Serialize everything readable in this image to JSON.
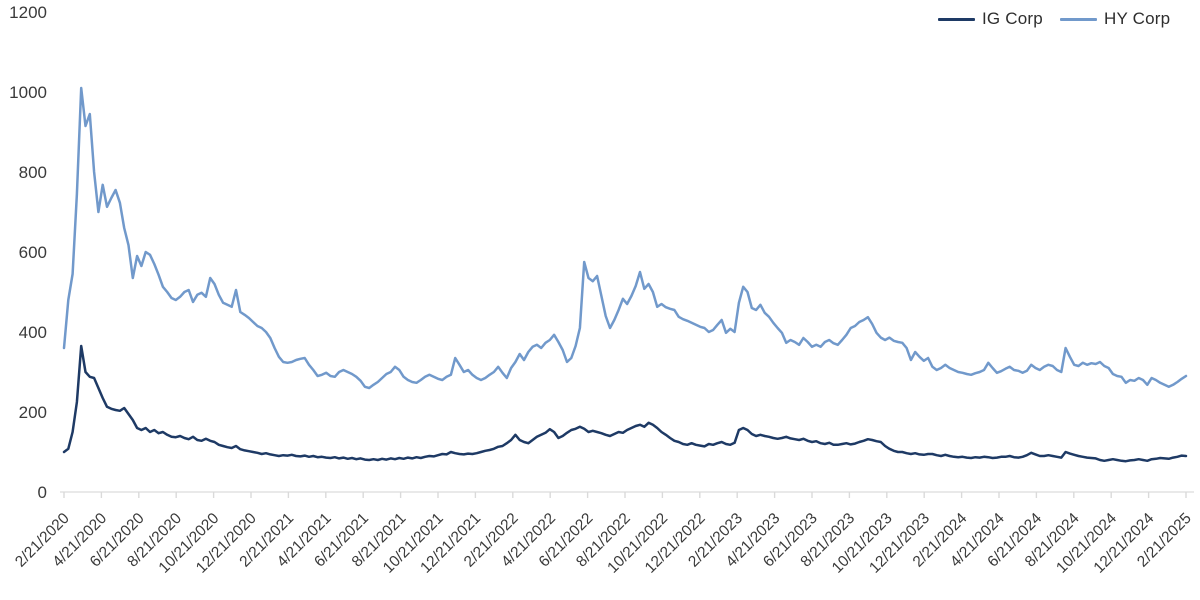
{
  "chart_data": {
    "type": "line",
    "title": "",
    "legend_position": "top-right",
    "grid": "none",
    "background": "#ffffff",
    "x_axis": {
      "start": "2/21/2020",
      "end": "2/21/2025",
      "frequency": "weekly",
      "tick_labels": [
        "2/21/2020",
        "4/21/2020",
        "6/21/2020",
        "8/21/2020",
        "10/21/2020",
        "12/21/2020",
        "2/21/2021",
        "4/21/2021",
        "6/21/2021",
        "8/21/2021",
        "10/21/2021",
        "12/21/2021",
        "2/21/2022",
        "4/21/2022",
        "6/21/2022",
        "8/21/2022",
        "10/21/2022",
        "12/21/2022",
        "2/21/2023",
        "4/21/2023",
        "6/21/2023",
        "8/21/2023",
        "10/21/2023",
        "12/21/2023",
        "2/21/2024",
        "4/21/2024",
        "6/21/2024",
        "8/21/2024",
        "10/21/2024",
        "12/21/2024",
        "2/21/2025"
      ]
    },
    "y_axis": {
      "min": 0,
      "max": 1200,
      "ticks": [
        0,
        200,
        400,
        600,
        800,
        1000,
        1200
      ]
    },
    "series": [
      {
        "name": "IG Corp",
        "color": "#1e3a65",
        "values": [
          100,
          108,
          150,
          225,
          365,
          300,
          288,
          285,
          260,
          235,
          213,
          208,
          205,
          203,
          210,
          195,
          180,
          160,
          155,
          160,
          150,
          155,
          147,
          150,
          143,
          138,
          137,
          140,
          135,
          132,
          138,
          130,
          128,
          133,
          128,
          125,
          118,
          115,
          112,
          110,
          115,
          107,
          104,
          102,
          100,
          98,
          95,
          97,
          94,
          92,
          90,
          92,
          91,
          93,
          90,
          89,
          91,
          88,
          90,
          87,
          88,
          86,
          85,
          87,
          84,
          86,
          83,
          85,
          82,
          84,
          81,
          80,
          82,
          80,
          83,
          81,
          84,
          82,
          85,
          83,
          86,
          84,
          87,
          85,
          88,
          90,
          89,
          92,
          95,
          94,
          100,
          97,
          95,
          94,
          96,
          95,
          97,
          100,
          103,
          105,
          108,
          113,
          115,
          122,
          130,
          143,
          130,
          125,
          122,
          130,
          138,
          143,
          148,
          157,
          150,
          135,
          140,
          148,
          155,
          158,
          163,
          158,
          150,
          153,
          150,
          147,
          143,
          140,
          145,
          150,
          148,
          155,
          160,
          165,
          168,
          163,
          173,
          168,
          160,
          150,
          143,
          135,
          128,
          125,
          120,
          118,
          122,
          118,
          116,
          114,
          120,
          118,
          122,
          125,
          120,
          118,
          123,
          155,
          160,
          155,
          145,
          140,
          143,
          140,
          138,
          135,
          133,
          135,
          138,
          134,
          132,
          130,
          133,
          128,
          125,
          127,
          122,
          120,
          123,
          118,
          118,
          120,
          122,
          119,
          121,
          125,
          128,
          132,
          130,
          127,
          125,
          115,
          108,
          103,
          100,
          100,
          97,
          95,
          97,
          94,
          93,
          95,
          95,
          92,
          90,
          93,
          90,
          88,
          87,
          88,
          86,
          85,
          87,
          86,
          88,
          87,
          85,
          86,
          88,
          88,
          90,
          87,
          86,
          88,
          92,
          98,
          94,
          90,
          90,
          92,
          90,
          88,
          86,
          100,
          96,
          93,
          90,
          88,
          86,
          85,
          84,
          80,
          78,
          80,
          82,
          80,
          78,
          77,
          79,
          80,
          82,
          80,
          78,
          82,
          83,
          85,
          84,
          83,
          86,
          88,
          91,
          90
        ]
      },
      {
        "name": "HY Corp",
        "color": "#7199cb",
        "values": [
          360,
          480,
          545,
          745,
          1010,
          915,
          945,
          800,
          700,
          768,
          713,
          735,
          755,
          723,
          660,
          617,
          535,
          590,
          565,
          600,
          593,
          570,
          543,
          513,
          500,
          485,
          480,
          488,
          500,
          505,
          475,
          493,
          498,
          488,
          535,
          520,
          493,
          473,
          468,
          463,
          505,
          450,
          443,
          435,
          425,
          415,
          410,
          400,
          385,
          360,
          338,
          325,
          323,
          325,
          330,
          333,
          335,
          318,
          305,
          290,
          293,
          298,
          290,
          288,
          300,
          305,
          300,
          295,
          288,
          278,
          263,
          260,
          268,
          275,
          285,
          295,
          300,
          313,
          305,
          288,
          280,
          275,
          273,
          280,
          288,
          293,
          288,
          283,
          280,
          288,
          293,
          335,
          318,
          300,
          305,
          293,
          285,
          280,
          285,
          293,
          300,
          313,
          298,
          285,
          310,
          325,
          345,
          330,
          350,
          363,
          368,
          360,
          373,
          380,
          393,
          375,
          355,
          325,
          335,
          365,
          410,
          575,
          535,
          527,
          540,
          490,
          440,
          410,
          430,
          455,
          483,
          470,
          490,
          515,
          550,
          508,
          520,
          500,
          463,
          470,
          462,
          458,
          455,
          438,
          432,
          428,
          423,
          418,
          413,
          410,
          400,
          405,
          418,
          430,
          398,
          408,
          400,
          473,
          513,
          500,
          460,
          455,
          468,
          448,
          438,
          423,
          410,
          398,
          373,
          380,
          375,
          368,
          385,
          375,
          363,
          368,
          363,
          375,
          380,
          372,
          368,
          380,
          393,
          410,
          415,
          425,
          430,
          437,
          420,
          398,
          386,
          380,
          386,
          378,
          375,
          373,
          360,
          330,
          350,
          338,
          328,
          335,
          313,
          305,
          310,
          318,
          310,
          305,
          300,
          298,
          295,
          293,
          297,
          300,
          305,
          323,
          310,
          298,
          302,
          308,
          313,
          305,
          303,
          298,
          303,
          318,
          310,
          305,
          313,
          318,
          315,
          305,
          300,
          360,
          338,
          318,
          315,
          323,
          318,
          322,
          320,
          325,
          315,
          310,
          295,
          290,
          288,
          273,
          280,
          278,
          285,
          280,
          268,
          285,
          280,
          273,
          268,
          263,
          268,
          275,
          283,
          290
        ]
      }
    ]
  },
  "colors": {
    "axis_line": "#e2e2e2",
    "tick_mark": "#dadada",
    "label_text": "#3a3a3a",
    "background": "#ffffff"
  }
}
